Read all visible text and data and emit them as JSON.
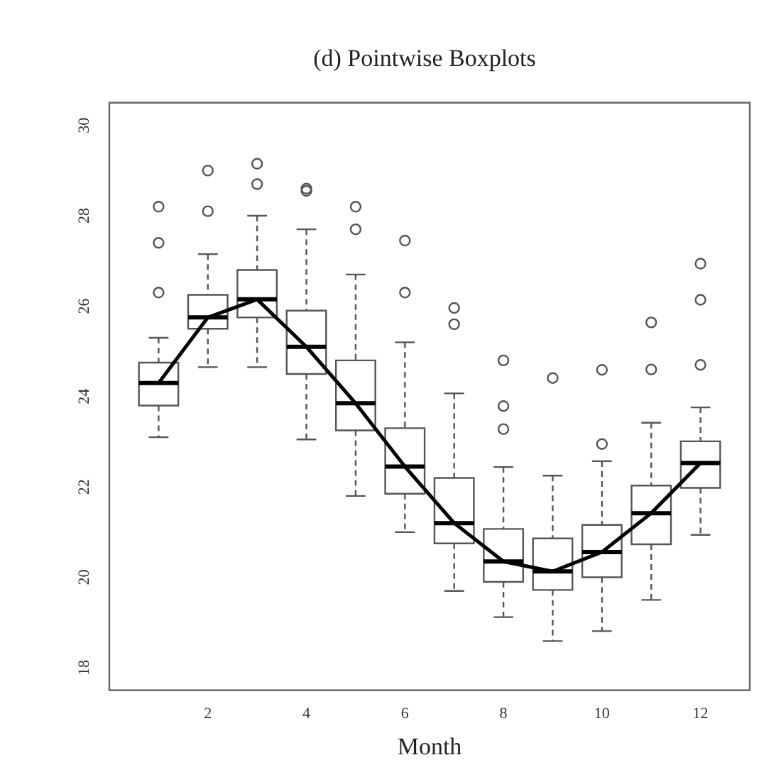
{
  "chart_data": {
    "type": "box",
    "title": "(d) Pointwise Boxplots",
    "xlabel": "Month",
    "x": [
      1,
      2,
      3,
      4,
      5,
      6,
      7,
      8,
      9,
      10,
      11,
      12
    ],
    "xlim": [
      0,
      13
    ],
    "xticks": [
      2,
      4,
      6,
      8,
      10,
      12
    ],
    "ylim": [
      17.5,
      30.5
    ],
    "yticks": [
      18,
      20,
      22,
      24,
      26,
      28,
      30
    ],
    "grid": false,
    "legend": false,
    "boxes": [
      {
        "low": 23.1,
        "q1": 23.8,
        "median": 24.3,
        "q3": 24.75,
        "high": 25.3,
        "outliers": [
          26.3,
          27.4,
          28.2
        ]
      },
      {
        "low": 24.65,
        "q1": 25.5,
        "median": 25.75,
        "q3": 26.25,
        "high": 27.15,
        "outliers": [
          28.1,
          29.0
        ]
      },
      {
        "low": 24.65,
        "q1": 25.75,
        "median": 26.15,
        "q3": 26.8,
        "high": 28.0,
        "outliers": [
          28.7,
          29.15
        ]
      },
      {
        "low": 23.05,
        "q1": 24.5,
        "median": 25.1,
        "q3": 25.9,
        "high": 27.7,
        "outliers": [
          28.55,
          28.6
        ]
      },
      {
        "low": 21.8,
        "q1": 23.25,
        "median": 23.85,
        "q3": 24.8,
        "high": 26.7,
        "outliers": [
          27.7,
          28.2
        ]
      },
      {
        "low": 21.0,
        "q1": 21.85,
        "median": 22.45,
        "q3": 23.3,
        "high": 25.2,
        "outliers": [
          26.3,
          27.45
        ]
      },
      {
        "low": 19.7,
        "q1": 20.75,
        "median": 21.2,
        "q3": 22.2,
        "high": 24.07,
        "outliers": [
          25.6,
          25.96
        ]
      },
      {
        "low": 19.12,
        "q1": 19.9,
        "median": 20.35,
        "q3": 21.07,
        "high": 22.44,
        "outliers": [
          23.28,
          23.79,
          24.8
        ]
      },
      {
        "low": 18.59,
        "q1": 19.72,
        "median": 20.13,
        "q3": 20.86,
        "high": 22.25,
        "outliers": [
          24.41
        ]
      },
      {
        "low": 18.81,
        "q1": 20.0,
        "median": 20.56,
        "q3": 21.16,
        "high": 22.57,
        "outliers": [
          22.95,
          24.59
        ]
      },
      {
        "low": 19.5,
        "q1": 20.73,
        "median": 21.42,
        "q3": 22.03,
        "high": 23.42,
        "outliers": [
          24.6,
          25.64
        ]
      },
      {
        "low": 20.94,
        "q1": 21.98,
        "median": 22.53,
        "q3": 23.01,
        "high": 23.76,
        "outliers": [
          24.7,
          26.14,
          26.94
        ]
      }
    ],
    "series": [
      {
        "type": "line",
        "color": "#000000",
        "x": [
          1,
          2,
          3,
          4,
          5,
          6,
          7,
          8,
          9,
          10,
          11,
          12
        ],
        "values": [
          24.3,
          25.75,
          26.15,
          25.1,
          23.85,
          22.45,
          21.2,
          20.35,
          20.13,
          20.56,
          21.42,
          22.53
        ],
        "marker": "none"
      }
    ]
  }
}
